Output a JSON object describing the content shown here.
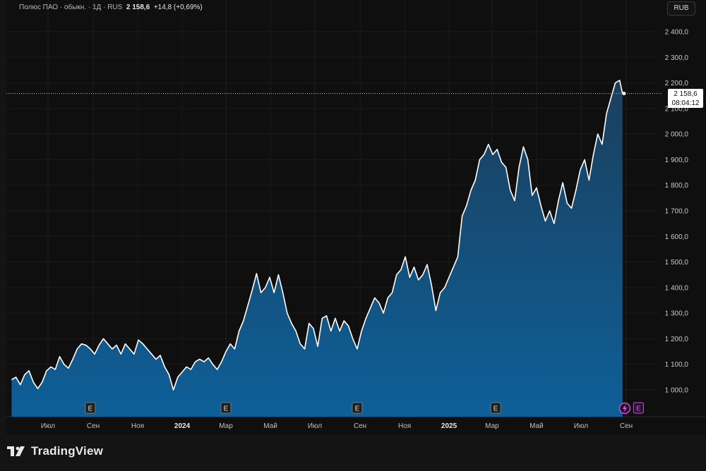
{
  "header": {
    "instrument": "Полюс ПАО · обыкн. · 1Д · RUS",
    "last": "2 158,6",
    "change": "+14,8 (+0,69%)"
  },
  "currency_button": "RUB",
  "price_tag": {
    "price": "2 158,6",
    "countdown": "08:04:12"
  },
  "brand": "TradingView",
  "colors": {
    "line": "#ffffff",
    "area_top": "#1b3f5c",
    "area_bottom": "#0e5f99",
    "background": "#0f0f0f",
    "text": "#b8b8b8"
  },
  "chart_data": {
    "type": "area",
    "ylim": [
      900,
      2450
    ],
    "yticks": [
      {
        "value": 1000,
        "label": "1 000,0"
      },
      {
        "value": 1100,
        "label": "1 100,0"
      },
      {
        "value": 1200,
        "label": "1 200,0"
      },
      {
        "value": 1300,
        "label": "1 300,0"
      },
      {
        "value": 1400,
        "label": "1 400,0"
      },
      {
        "value": 1500,
        "label": "1 500,0"
      },
      {
        "value": 1600,
        "label": "1 600,0"
      },
      {
        "value": 1700,
        "label": "1 700,0"
      },
      {
        "value": 1800,
        "label": "1 800,0"
      },
      {
        "value": 1900,
        "label": "1 900,0"
      },
      {
        "value": 2000,
        "label": "2 000,0"
      },
      {
        "value": 2100,
        "label": "2 100,0"
      },
      {
        "value": 2200,
        "label": "2 200,0"
      },
      {
        "value": 2300,
        "label": "2 300,0"
      },
      {
        "value": 2400,
        "label": "2 400,0"
      }
    ],
    "xticks": [
      {
        "date": "2023-07-01",
        "label": "Июл",
        "bold": false
      },
      {
        "date": "2023-09-01",
        "label": "Сен",
        "bold": false
      },
      {
        "date": "2023-11-01",
        "label": "Ноя",
        "bold": false
      },
      {
        "date": "2024-01-01",
        "label": "2024",
        "bold": true
      },
      {
        "date": "2024-03-01",
        "label": "Мар",
        "bold": false
      },
      {
        "date": "2024-05-01",
        "label": "Май",
        "bold": false
      },
      {
        "date": "2024-07-01",
        "label": "Июл",
        "bold": false
      },
      {
        "date": "2024-09-01",
        "label": "Сен",
        "bold": false
      },
      {
        "date": "2024-11-01",
        "label": "Ноя",
        "bold": false
      },
      {
        "date": "2025-01-01",
        "label": "2025",
        "bold": true
      },
      {
        "date": "2025-03-01",
        "label": "Мар",
        "bold": false
      },
      {
        "date": "2025-05-01",
        "label": "Май",
        "bold": false
      },
      {
        "date": "2025-07-01",
        "label": "Июл",
        "bold": false
      },
      {
        "date": "2025-09-01",
        "label": "Сен",
        "bold": false
      }
    ],
    "earnings_markers": [
      {
        "date": "2023-08-28",
        "label": "E"
      },
      {
        "date": "2024-03-01",
        "label": "E"
      },
      {
        "date": "2024-08-28",
        "label": "E"
      },
      {
        "date": "2025-03-06",
        "label": "E"
      },
      {
        "date": "2025-09-12",
        "label": "E"
      }
    ],
    "dividend_marker": {
      "date": "2025-08-30"
    },
    "last_price": 2158.6,
    "series": [
      {
        "values": [
          [
            "2023-05-12",
            1040
          ],
          [
            "2023-05-18",
            1050
          ],
          [
            "2023-05-24",
            1020
          ],
          [
            "2023-05-30",
            1060
          ],
          [
            "2023-06-05",
            1075
          ],
          [
            "2023-06-11",
            1030
          ],
          [
            "2023-06-17",
            1005
          ],
          [
            "2023-06-23",
            1030
          ],
          [
            "2023-06-29",
            1075
          ],
          [
            "2023-07-05",
            1090
          ],
          [
            "2023-07-11",
            1080
          ],
          [
            "2023-07-17",
            1130
          ],
          [
            "2023-07-23",
            1100
          ],
          [
            "2023-07-29",
            1085
          ],
          [
            "2023-08-04",
            1120
          ],
          [
            "2023-08-10",
            1160
          ],
          [
            "2023-08-16",
            1180
          ],
          [
            "2023-08-22",
            1175
          ],
          [
            "2023-08-28",
            1160
          ],
          [
            "2023-09-03",
            1140
          ],
          [
            "2023-09-09",
            1175
          ],
          [
            "2023-09-15",
            1200
          ],
          [
            "2023-09-21",
            1180
          ],
          [
            "2023-09-27",
            1160
          ],
          [
            "2023-10-03",
            1175
          ],
          [
            "2023-10-09",
            1140
          ],
          [
            "2023-10-15",
            1180
          ],
          [
            "2023-10-21",
            1160
          ],
          [
            "2023-10-27",
            1140
          ],
          [
            "2023-11-02",
            1195
          ],
          [
            "2023-11-08",
            1180
          ],
          [
            "2023-11-14",
            1160
          ],
          [
            "2023-11-20",
            1140
          ],
          [
            "2023-11-26",
            1120
          ],
          [
            "2023-12-02",
            1135
          ],
          [
            "2023-12-08",
            1090
          ],
          [
            "2023-12-14",
            1060
          ],
          [
            "2023-12-20",
            1000
          ],
          [
            "2023-12-26",
            1050
          ],
          [
            "2024-01-01",
            1070
          ],
          [
            "2024-01-07",
            1090
          ],
          [
            "2024-01-13",
            1080
          ],
          [
            "2024-01-19",
            1110
          ],
          [
            "2024-01-25",
            1120
          ],
          [
            "2024-01-31",
            1110
          ],
          [
            "2024-02-06",
            1125
          ],
          [
            "2024-02-12",
            1100
          ],
          [
            "2024-02-18",
            1080
          ],
          [
            "2024-02-24",
            1110
          ],
          [
            "2024-03-01",
            1150
          ],
          [
            "2024-03-07",
            1180
          ],
          [
            "2024-03-13",
            1160
          ],
          [
            "2024-03-19",
            1230
          ],
          [
            "2024-03-25",
            1270
          ],
          [
            "2024-03-31",
            1330
          ],
          [
            "2024-04-06",
            1390
          ],
          [
            "2024-04-12",
            1455
          ],
          [
            "2024-04-18",
            1380
          ],
          [
            "2024-04-24",
            1400
          ],
          [
            "2024-04-30",
            1440
          ],
          [
            "2024-05-06",
            1380
          ],
          [
            "2024-05-12",
            1450
          ],
          [
            "2024-05-18",
            1380
          ],
          [
            "2024-05-24",
            1300
          ],
          [
            "2024-05-30",
            1260
          ],
          [
            "2024-06-05",
            1230
          ],
          [
            "2024-06-11",
            1180
          ],
          [
            "2024-06-17",
            1160
          ],
          [
            "2024-06-23",
            1260
          ],
          [
            "2024-06-29",
            1240
          ],
          [
            "2024-07-05",
            1170
          ],
          [
            "2024-07-11",
            1280
          ],
          [
            "2024-07-17",
            1290
          ],
          [
            "2024-07-23",
            1230
          ],
          [
            "2024-07-29",
            1280
          ],
          [
            "2024-08-04",
            1230
          ],
          [
            "2024-08-10",
            1270
          ],
          [
            "2024-08-16",
            1250
          ],
          [
            "2024-08-22",
            1200
          ],
          [
            "2024-08-28",
            1160
          ],
          [
            "2024-09-03",
            1230
          ],
          [
            "2024-09-09",
            1280
          ],
          [
            "2024-09-15",
            1320
          ],
          [
            "2024-09-21",
            1360
          ],
          [
            "2024-09-27",
            1340
          ],
          [
            "2024-10-03",
            1300
          ],
          [
            "2024-10-09",
            1360
          ],
          [
            "2024-10-15",
            1380
          ],
          [
            "2024-10-21",
            1450
          ],
          [
            "2024-10-27",
            1470
          ],
          [
            "2024-11-02",
            1520
          ],
          [
            "2024-11-08",
            1440
          ],
          [
            "2024-11-14",
            1480
          ],
          [
            "2024-11-20",
            1430
          ],
          [
            "2024-11-26",
            1450
          ],
          [
            "2024-12-02",
            1490
          ],
          [
            "2024-12-08",
            1410
          ],
          [
            "2024-12-14",
            1310
          ],
          [
            "2024-12-20",
            1380
          ],
          [
            "2024-12-26",
            1400
          ],
          [
            "2025-01-01",
            1440
          ],
          [
            "2025-01-07",
            1480
          ],
          [
            "2025-01-13",
            1520
          ],
          [
            "2025-01-19",
            1680
          ],
          [
            "2025-01-25",
            1720
          ],
          [
            "2025-01-31",
            1780
          ],
          [
            "2025-02-06",
            1820
          ],
          [
            "2025-02-12",
            1900
          ],
          [
            "2025-02-18",
            1920
          ],
          [
            "2025-02-24",
            1960
          ],
          [
            "2025-03-02",
            1920
          ],
          [
            "2025-03-08",
            1940
          ],
          [
            "2025-03-14",
            1890
          ],
          [
            "2025-03-20",
            1870
          ],
          [
            "2025-03-26",
            1780
          ],
          [
            "2025-04-01",
            1740
          ],
          [
            "2025-04-07",
            1870
          ],
          [
            "2025-04-13",
            1950
          ],
          [
            "2025-04-19",
            1900
          ],
          [
            "2025-04-25",
            1760
          ],
          [
            "2025-05-01",
            1790
          ],
          [
            "2025-05-07",
            1720
          ],
          [
            "2025-05-13",
            1660
          ],
          [
            "2025-05-19",
            1700
          ],
          [
            "2025-05-25",
            1650
          ],
          [
            "2025-05-31",
            1740
          ],
          [
            "2025-06-06",
            1810
          ],
          [
            "2025-06-12",
            1730
          ],
          [
            "2025-06-18",
            1710
          ],
          [
            "2025-06-24",
            1780
          ],
          [
            "2025-06-30",
            1860
          ],
          [
            "2025-07-06",
            1900
          ],
          [
            "2025-07-12",
            1820
          ],
          [
            "2025-07-18",
            1920
          ],
          [
            "2025-07-24",
            2000
          ],
          [
            "2025-07-30",
            1960
          ],
          [
            "2025-08-05",
            2080
          ],
          [
            "2025-08-11",
            2140
          ],
          [
            "2025-08-17",
            2200
          ],
          [
            "2025-08-23",
            2210
          ],
          [
            "2025-08-27",
            2158.6
          ]
        ]
      }
    ]
  }
}
